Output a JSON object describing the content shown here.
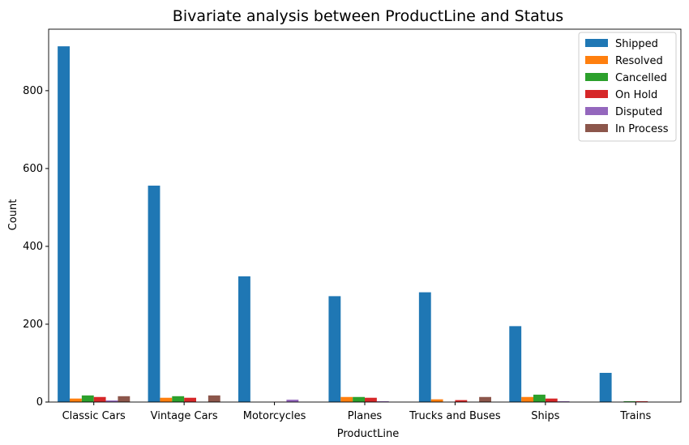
{
  "chart_data": {
    "type": "bar",
    "title": "Bivariate analysis between ProductLine and Status",
    "xlabel": "ProductLine",
    "ylabel": "Count",
    "ylim": [
      0,
      958
    ],
    "yticks": [
      0,
      200,
      400,
      600,
      800
    ],
    "grid": false,
    "legend_position": "top-right",
    "categories": [
      "Classic Cars",
      "Vintage Cars",
      "Motorcycles",
      "Planes",
      "Trucks and Buses",
      "Ships",
      "Trains"
    ],
    "series": [
      {
        "name": "Shipped",
        "color": "#1f77b4",
        "values": [
          914,
          556,
          323,
          272,
          282,
          195,
          75
        ]
      },
      {
        "name": "Resolved",
        "color": "#ff7f0e",
        "values": [
          9,
          11,
          0,
          13,
          7,
          13,
          0
        ]
      },
      {
        "name": "Cancelled",
        "color": "#2ca02c",
        "values": [
          17,
          15,
          0,
          13,
          0,
          19,
          2
        ]
      },
      {
        "name": "On Hold",
        "color": "#d62728",
        "values": [
          13,
          11,
          1,
          11,
          5,
          9,
          2
        ]
      },
      {
        "name": "Disputed",
        "color": "#9467bd",
        "values": [
          4,
          0,
          6,
          2,
          0,
          2,
          0
        ]
      },
      {
        "name": "In Process",
        "color": "#8c564b",
        "values": [
          15,
          17,
          0,
          0,
          13,
          0,
          0
        ]
      }
    ]
  }
}
